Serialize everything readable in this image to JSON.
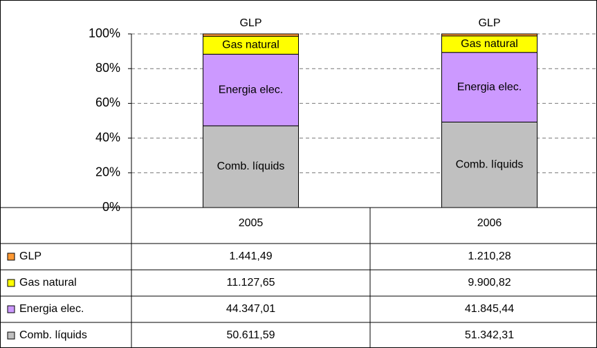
{
  "chart_data": {
    "type": "bar",
    "stacked": "percent",
    "categories": [
      "2005",
      "2006"
    ],
    "series": [
      {
        "name": "Comb. líquids",
        "color": "#c0c0c0",
        "values": [
          50611.59,
          51342.31
        ],
        "value_labels": [
          "50.611,59",
          "51.342,31"
        ]
      },
      {
        "name": "Energia elec.",
        "color": "#cc99ff",
        "values": [
          44347.01,
          41845.44
        ],
        "value_labels": [
          "44.347,01",
          "41.845,44"
        ]
      },
      {
        "name": "Gas natural",
        "color": "#ffff00",
        "values": [
          11127.65,
          9900.82
        ],
        "value_labels": [
          "11.127,65",
          "9.900,82"
        ]
      },
      {
        "name": "GLP",
        "color": "#ff9933",
        "values": [
          1441.49,
          1210.28
        ],
        "value_labels": [
          "1.441,49",
          "1.210,28"
        ]
      }
    ],
    "ylim": [
      0,
      100
    ],
    "yticks": [
      {
        "value": 0,
        "label": "0%"
      },
      {
        "value": 20,
        "label": "20%"
      },
      {
        "value": 40,
        "label": "40%"
      },
      {
        "value": 60,
        "label": "60%"
      },
      {
        "value": 80,
        "label": "80%"
      },
      {
        "value": 100,
        "label": "100%"
      }
    ],
    "grid": true,
    "data_table": true
  }
}
